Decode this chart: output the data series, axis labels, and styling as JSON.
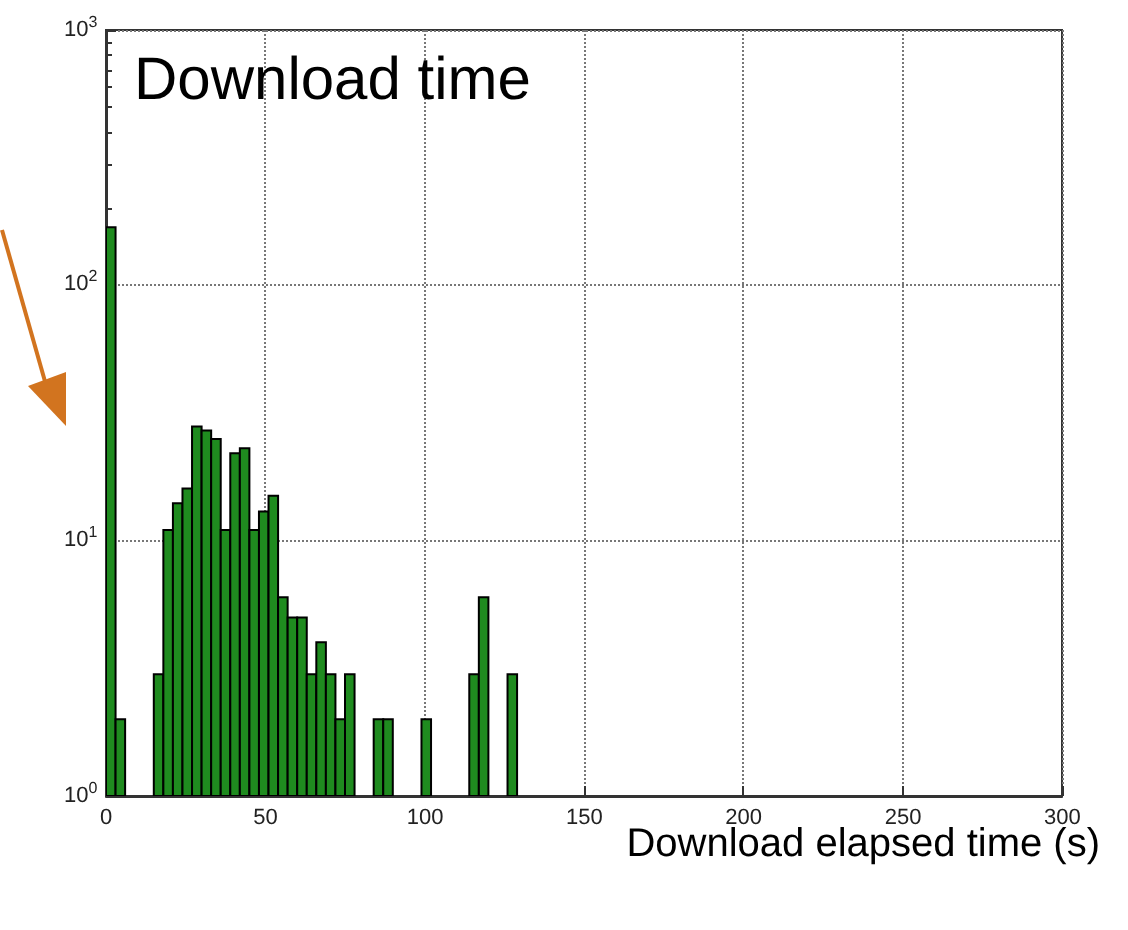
{
  "chart_data": {
    "type": "histogram",
    "title": "Download time",
    "xlabel": "Download elapsed time (s)",
    "bins": [
      0,
      3,
      6,
      9,
      12,
      15,
      18,
      21,
      24,
      27,
      30,
      33,
      36,
      39,
      42,
      45,
      48,
      51,
      54,
      57,
      60,
      63,
      66,
      69,
      72,
      75,
      78,
      81,
      84,
      87,
      90,
      93,
      96,
      99,
      102,
      105,
      108,
      111,
      114,
      117,
      120,
      123,
      126,
      129
    ],
    "values": [
      169,
      2,
      null,
      null,
      null,
      3,
      11,
      14,
      16,
      28,
      27,
      25,
      11,
      22,
      23,
      11,
      13,
      15,
      6,
      5,
      5,
      3,
      4,
      3,
      2,
      3,
      null,
      null,
      2,
      2,
      null,
      null,
      null,
      2,
      null,
      null,
      null,
      null,
      3,
      6,
      null,
      null,
      3
    ],
    "color": "#1f8b1f",
    "xlim": [
      0,
      300
    ],
    "xticks": [
      0,
      50,
      100,
      150,
      200,
      250,
      300
    ],
    "ylim": [
      1,
      1000
    ],
    "yticks": [
      {
        "value": 1,
        "label": "10$^{0}$"
      },
      {
        "value": 10,
        "label": "10$^{1}$"
      },
      {
        "value": 100,
        "label": "10$^{2}$"
      },
      {
        "value": 1000,
        "label": "10$^{3}$"
      }
    ],
    "log": "y",
    "grid": true
  }
}
